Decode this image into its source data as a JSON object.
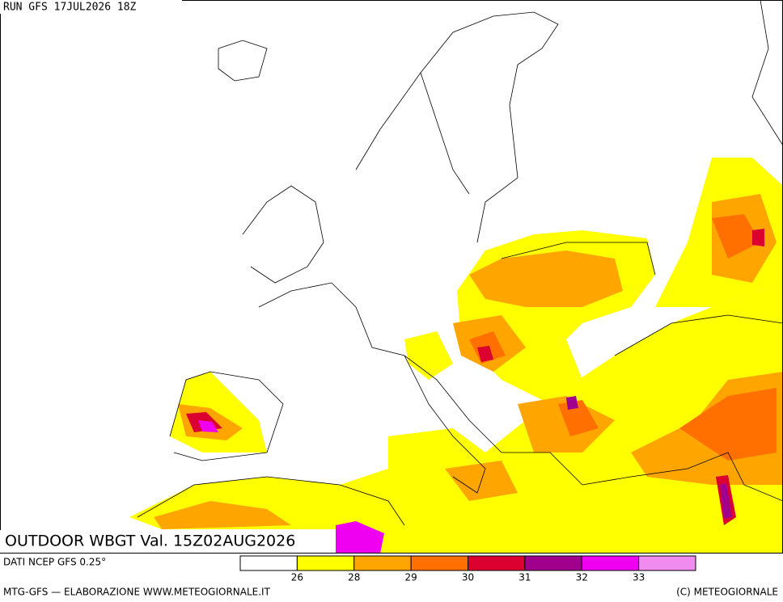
{
  "header": {
    "run": "RUN GFS 17JUL2026 18Z"
  },
  "map": {
    "title": "OUTDOOR WBGT Val. 15Z02AUG2026"
  },
  "legend": {
    "source": "DATI NCEP GFS 0.25°",
    "colors": [
      "#ffffff",
      "#ffff00",
      "#ffa500",
      "#ff7000",
      "#dc0030",
      "#a0008c",
      "#f000f0",
      "#f08cf0"
    ],
    "thresholds": [
      26,
      28,
      29,
      30,
      31,
      32,
      33
    ]
  },
  "footer": {
    "left": "MTG-GFS — ELABORAZIONE WWW.METEOGIORNALE.IT",
    "right": "(C) METEOGIORNALE"
  }
}
